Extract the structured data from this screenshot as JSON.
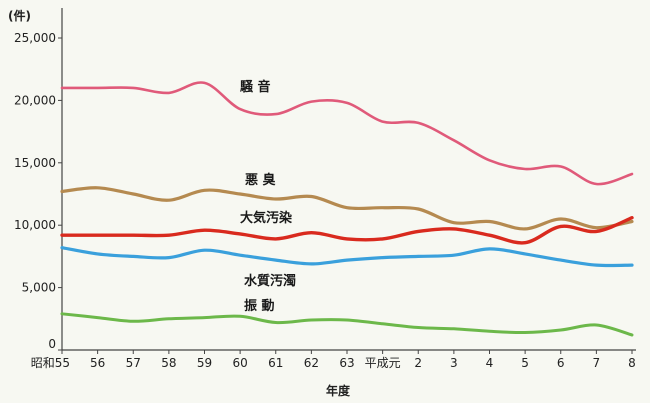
{
  "chart_data": {
    "type": "line",
    "title": "",
    "xlabel": "年度",
    "ylabel": "(件)",
    "ylim": [
      0,
      25000
    ],
    "yticks": [
      "0",
      "5,000",
      "10,000",
      "15,000",
      "20,000",
      "25,000"
    ],
    "categories": [
      "昭和55",
      "56",
      "57",
      "58",
      "59",
      "60",
      "61",
      "62",
      "63",
      "平成元",
      "2",
      "3",
      "4",
      "5",
      "6",
      "7",
      "8"
    ],
    "grid": false,
    "series": [
      {
        "name": "騒 音",
        "color": "#e05a7a",
        "values": [
          21000,
          21000,
          21000,
          20600,
          21400,
          19300,
          18900,
          19900,
          19800,
          18300,
          18200,
          16800,
          15200,
          14500,
          14700,
          13300,
          14100
        ]
      },
      {
        "name": "悪 臭",
        "color": "#b58a50",
        "values": [
          12700,
          13000,
          12500,
          12000,
          12800,
          12500,
          12100,
          12300,
          11400,
          11400,
          11300,
          10200,
          10300,
          9700,
          10500,
          9800,
          10300
        ]
      },
      {
        "name": "大気汚染",
        "color": "#d92a1e",
        "values": [
          9200,
          9200,
          9200,
          9200,
          9600,
          9300,
          8900,
          9400,
          8900,
          8900,
          9500,
          9700,
          9200,
          8600,
          9900,
          9500,
          10600
        ]
      },
      {
        "name": "水質汚濁",
        "color": "#3aa0dc",
        "values": [
          8200,
          7700,
          7500,
          7400,
          8000,
          7600,
          7200,
          6900,
          7200,
          7400,
          7500,
          7600,
          8100,
          7700,
          7200,
          6800,
          6800
        ]
      },
      {
        "name": "振 動",
        "color": "#6cb84a",
        "values": [
          2900,
          2600,
          2300,
          2500,
          2600,
          2700,
          2200,
          2400,
          2400,
          2100,
          1800,
          1700,
          1500,
          1400,
          1600,
          2000,
          1200
        ]
      }
    ]
  }
}
